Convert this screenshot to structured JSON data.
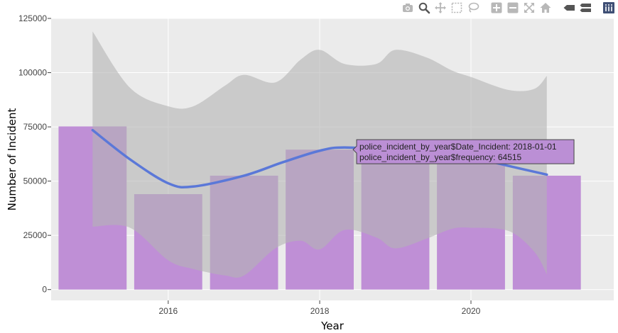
{
  "modebar": {
    "buttons": [
      {
        "name": "camera-icon",
        "title": "Download plot as a png"
      },
      {
        "name": "zoom-icon",
        "title": "Zoom"
      },
      {
        "name": "pan-icon",
        "title": "Pan"
      },
      {
        "name": "box-select-icon",
        "title": "Box Select"
      },
      {
        "name": "lasso-select-icon",
        "title": "Lasso Select"
      },
      {
        "name": "zoom-in-icon",
        "title": "Zoom in"
      },
      {
        "name": "zoom-out-icon",
        "title": "Zoom out"
      },
      {
        "name": "autoscale-icon",
        "title": "Autoscale"
      },
      {
        "name": "home-icon",
        "title": "Reset axes"
      },
      {
        "name": "hover-closest-icon",
        "title": "Show closest data on hover"
      },
      {
        "name": "hover-compare-icon",
        "title": "Compare data on hover"
      },
      {
        "name": "plotly-logo-icon",
        "title": "Produced with Plotly"
      }
    ]
  },
  "colors": {
    "panel": "#ebebeb",
    "grid": "#ffffff",
    "bar": "#bf8fd6",
    "band": "#b4b4b4",
    "line": "#5b78d8",
    "tooltip_bg": "#bb8fd5",
    "tick": "#444444"
  },
  "chart_data": {
    "type": "bar",
    "title": "",
    "xlabel": "Year",
    "ylabel": "Number of Incident",
    "x": [
      "2015-01-01",
      "2016-01-01",
      "2017-01-01",
      "2018-01-01",
      "2019-01-01",
      "2020-01-01",
      "2021-01-01"
    ],
    "values": [
      75200,
      44000,
      52500,
      64515,
      59500,
      60500,
      52500
    ],
    "xlim": [
      "2014-06-15",
      "2021-11-20"
    ],
    "ylim": [
      -5000,
      125000
    ],
    "x_ticks": [
      "2016",
      "2018",
      "2020"
    ],
    "y_ticks": [
      "0",
      "25000",
      "50000",
      "75000",
      "100000",
      "125000"
    ],
    "y_tick_values": [
      0,
      25000,
      50000,
      75000,
      100000,
      125000
    ],
    "grid": true,
    "smooth_line": {
      "x": [
        "2015-01-01",
        "2015-07-01",
        "2016-01-01",
        "2016-05-01",
        "2017-01-01",
        "2017-07-01",
        "2018-01-01",
        "2018-05-01",
        "2019-01-01",
        "2019-07-01",
        "2020-01-01",
        "2020-07-01",
        "2021-01-01"
      ],
      "y": [
        73500,
        60000,
        49000,
        47500,
        52500,
        58500,
        64000,
        65500,
        64000,
        63000,
        61000,
        57000,
        53000
      ]
    },
    "confidence_band": {
      "x": [
        "2015-01-01",
        "2015-07-01",
        "2016-01-01",
        "2016-05-01",
        "2016-10-01",
        "2017-01-01",
        "2017-06-01",
        "2017-10-01",
        "2018-01-01",
        "2018-05-01",
        "2018-10-01",
        "2019-01-01",
        "2019-06-01",
        "2019-10-01",
        "2020-01-01",
        "2020-07-01",
        "2020-11-01",
        "2021-01-01"
      ],
      "upper": [
        119000,
        93000,
        84500,
        84500,
        94000,
        99000,
        95500,
        106000,
        110500,
        104000,
        104000,
        110500,
        107000,
        101000,
        98000,
        92000,
        92500,
        98500
      ],
      "lower": [
        29000,
        28500,
        13500,
        9500,
        6500,
        6500,
        19000,
        22500,
        18500,
        27500,
        24000,
        19000,
        23500,
        28000,
        28500,
        27000,
        17500,
        7000
      ]
    },
    "tooltip": {
      "line1": "police_incident_by_year$Date_Incident: 2018-01-01",
      "line2": "police_incident_by_year$frequency: 64515"
    }
  }
}
